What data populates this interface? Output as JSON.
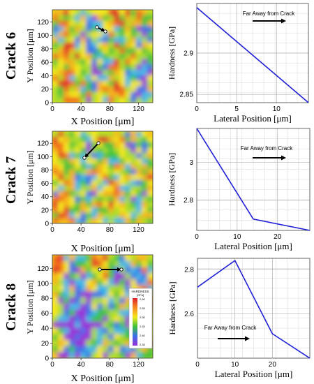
{
  "rows": [
    {
      "crack_label": "Crack 6"
    },
    {
      "crack_label": "Crack 7"
    },
    {
      "crack_label": "Crack 8"
    }
  ],
  "map_axes": {
    "xlabel": "X Position [μm]",
    "ylabel": "Y Position [μm]",
    "xticks": [
      "0",
      "40",
      "80",
      "120"
    ],
    "yticks": [
      "0",
      "20",
      "40",
      "60",
      "80",
      "100",
      "120"
    ]
  },
  "colorbar": {
    "title": "HARDNESS",
    "unit": "[GPa]",
    "labels": [
      "2.60",
      "2.55",
      "2.50",
      "2.45",
      "2.40",
      "2.35"
    ]
  },
  "arrow_text": "Far Away from Crack",
  "colors": {
    "line": "#1f1fd6",
    "grid": "#d8d8d8",
    "arrow": "#000000"
  },
  "chart_data": [
    {
      "type": "line",
      "title": "",
      "xlabel": "Lateral Position [μm]",
      "ylabel": "Hardness [GPa]",
      "xlim": [
        0,
        14
      ],
      "ylim": [
        2.84,
        2.96
      ],
      "xticks": [
        0,
        5,
        10
      ],
      "yticks": [
        2.85,
        2.9
      ],
      "ytick_labels": [
        "2.85",
        "2.9"
      ],
      "series": [
        {
          "x": [
            0,
            14
          ],
          "y": [
            2.955,
            2.84
          ]
        }
      ]
    },
    {
      "type": "line",
      "title": "",
      "xlabel": "Lateral Position [μm]",
      "ylabel": "Hardness [GPa]",
      "xlim": [
        0,
        28
      ],
      "ylim": [
        2.64,
        3.18
      ],
      "xticks": [
        0,
        10,
        20
      ],
      "yticks": [
        2.8,
        3.0
      ],
      "ytick_labels": [
        "2.8",
        "3"
      ],
      "series": [
        {
          "x": [
            0,
            14,
            28
          ],
          "y": [
            3.18,
            2.7,
            2.64
          ]
        }
      ]
    },
    {
      "type": "line",
      "title": "",
      "xlabel": "Lateral Position [μm]",
      "ylabel": "Hardness [GPa]",
      "xlim": [
        0,
        30
      ],
      "ylim": [
        2.4,
        2.85
      ],
      "xticks": [
        0,
        10,
        20
      ],
      "yticks": [
        2.6,
        2.8
      ],
      "ytick_labels": [
        "2.6",
        "2.8"
      ],
      "series": [
        {
          "x": [
            0,
            10,
            20,
            30
          ],
          "y": [
            2.72,
            2.84,
            2.51,
            2.4
          ]
        }
      ]
    }
  ]
}
